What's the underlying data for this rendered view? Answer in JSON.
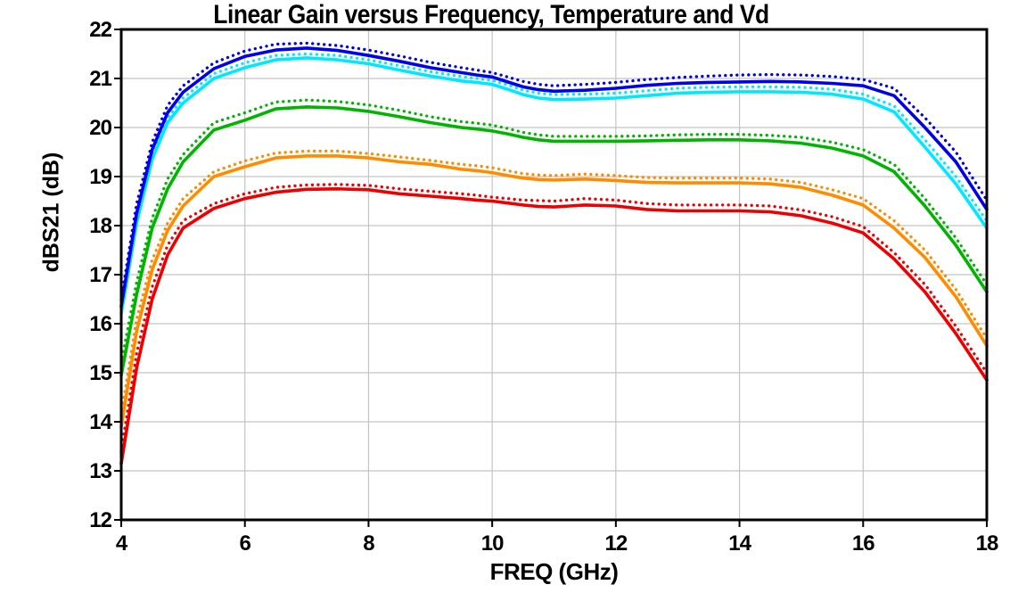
{
  "chart_data": {
    "type": "line",
    "title": "Linear Gain versus Frequency, Temperature and Vd",
    "xlabel": "FREQ (GHz)",
    "ylabel": "dBS21 (dB)",
    "xlim": [
      4,
      18
    ],
    "ylim": [
      12,
      22
    ],
    "x_ticks": [
      4,
      6,
      8,
      10,
      12,
      14,
      16,
      18
    ],
    "y_ticks": [
      12,
      13,
      14,
      15,
      16,
      17,
      18,
      19,
      20,
      21,
      22
    ],
    "grid": true,
    "legend_position": "none",
    "grid_color": "#c4c4c4",
    "border_color": "#000000",
    "x": [
      4,
      4.25,
      4.5,
      4.75,
      5,
      5.5,
      6,
      6.5,
      7,
      7.5,
      8,
      8.5,
      9,
      9.5,
      9.75,
      10,
      10.25,
      10.5,
      10.75,
      11,
      11.5,
      12,
      12.5,
      13,
      13.5,
      14,
      14.5,
      15,
      15.5,
      16,
      16.5,
      17,
      17.5,
      18
    ],
    "series": [
      {
        "name": "red-dotted",
        "color": "#ee0000",
        "style": "dotted",
        "values": [
          13.4,
          15.4,
          16.75,
          17.6,
          18.1,
          18.45,
          18.65,
          18.78,
          18.83,
          18.84,
          18.82,
          18.75,
          18.7,
          18.65,
          18.62,
          18.58,
          18.55,
          18.52,
          18.51,
          18.5,
          18.55,
          18.52,
          18.45,
          18.42,
          18.42,
          18.42,
          18.4,
          18.32,
          18.18,
          17.98,
          17.45,
          16.8,
          15.95,
          15.0
        ]
      },
      {
        "name": "red-solid",
        "color": "#ee0000",
        "style": "solid",
        "values": [
          13.15,
          15.1,
          16.5,
          17.4,
          17.95,
          18.35,
          18.55,
          18.68,
          18.74,
          18.75,
          18.73,
          18.65,
          18.6,
          18.55,
          18.52,
          18.5,
          18.46,
          18.42,
          18.39,
          18.38,
          18.42,
          18.4,
          18.33,
          18.3,
          18.3,
          18.3,
          18.28,
          18.2,
          18.05,
          17.85,
          17.32,
          16.65,
          15.8,
          14.85
        ]
      },
      {
        "name": "orange-dotted",
        "color": "#ff8c00",
        "style": "dotted",
        "values": [
          14.15,
          16.1,
          17.3,
          18.05,
          18.55,
          19.1,
          19.32,
          19.48,
          19.52,
          19.52,
          19.47,
          19.4,
          19.33,
          19.25,
          19.22,
          19.18,
          19.12,
          19.06,
          19.03,
          19.02,
          19.05,
          19.02,
          18.98,
          18.97,
          18.97,
          18.97,
          18.95,
          18.88,
          18.73,
          18.55,
          18.1,
          17.5,
          16.7,
          15.7
        ]
      },
      {
        "name": "orange-solid",
        "color": "#ff8c00",
        "style": "solid",
        "values": [
          13.9,
          15.85,
          17.1,
          17.9,
          18.4,
          19.0,
          19.2,
          19.38,
          19.42,
          19.42,
          19.38,
          19.3,
          19.25,
          19.15,
          19.12,
          19.08,
          19.02,
          18.97,
          18.94,
          18.93,
          18.95,
          18.92,
          18.88,
          18.87,
          18.87,
          18.87,
          18.85,
          18.78,
          18.62,
          18.42,
          17.95,
          17.35,
          16.55,
          15.55
        ]
      },
      {
        "name": "green-dotted",
        "color": "#00b400",
        "style": "dotted",
        "values": [
          15.2,
          16.85,
          18.15,
          18.95,
          19.45,
          20.1,
          20.3,
          20.52,
          20.56,
          20.53,
          20.46,
          20.35,
          20.22,
          20.12,
          20.09,
          20.05,
          19.98,
          19.9,
          19.85,
          19.82,
          19.82,
          19.82,
          19.83,
          19.85,
          19.86,
          19.86,
          19.84,
          19.8,
          19.7,
          19.55,
          19.25,
          18.55,
          17.75,
          16.8
        ]
      },
      {
        "name": "green-solid",
        "color": "#00b400",
        "style": "solid",
        "values": [
          14.95,
          16.6,
          17.95,
          18.75,
          19.3,
          19.95,
          20.15,
          20.38,
          20.42,
          20.4,
          20.33,
          20.22,
          20.1,
          20.0,
          19.97,
          19.93,
          19.87,
          19.8,
          19.75,
          19.72,
          19.72,
          19.72,
          19.73,
          19.74,
          19.75,
          19.75,
          19.73,
          19.68,
          19.58,
          19.42,
          19.1,
          18.4,
          17.6,
          16.65
        ]
      },
      {
        "name": "cyan-dotted",
        "color": "#00e8ff",
        "style": "dotted",
        "values": [
          16.35,
          18.2,
          19.5,
          20.2,
          20.6,
          21.1,
          21.32,
          21.47,
          21.5,
          21.47,
          21.38,
          21.26,
          21.14,
          21.04,
          21.0,
          20.96,
          20.87,
          20.76,
          20.7,
          20.67,
          20.68,
          20.7,
          20.75,
          20.8,
          20.82,
          20.83,
          20.83,
          20.82,
          20.78,
          20.68,
          20.44,
          19.75,
          19.0,
          18.1
        ]
      },
      {
        "name": "cyan-solid",
        "color": "#00e8ff",
        "style": "solid",
        "values": [
          16.2,
          18.05,
          19.35,
          20.1,
          20.5,
          21.0,
          21.22,
          21.38,
          21.42,
          21.38,
          21.3,
          21.17,
          21.05,
          20.95,
          20.92,
          20.88,
          20.78,
          20.67,
          20.6,
          20.57,
          20.58,
          20.6,
          20.65,
          20.7,
          20.72,
          20.73,
          20.73,
          20.72,
          20.68,
          20.58,
          20.32,
          19.6,
          18.85,
          17.95
        ]
      },
      {
        "name": "blue-dotted",
        "color": "#0000eb",
        "style": "dotted",
        "values": [
          16.5,
          18.45,
          19.7,
          20.45,
          20.85,
          21.32,
          21.56,
          21.7,
          21.72,
          21.67,
          21.58,
          21.46,
          21.33,
          21.22,
          21.17,
          21.12,
          21.03,
          20.94,
          20.88,
          20.85,
          20.88,
          20.92,
          20.98,
          21.02,
          21.05,
          21.07,
          21.08,
          21.07,
          21.04,
          20.98,
          20.8,
          20.2,
          19.5,
          18.52
        ]
      },
      {
        "name": "blue-solid",
        "color": "#0000eb",
        "style": "solid",
        "values": [
          16.35,
          18.25,
          19.55,
          20.3,
          20.72,
          21.2,
          21.45,
          21.58,
          21.62,
          21.57,
          21.47,
          21.35,
          21.22,
          21.12,
          21.07,
          21.03,
          20.93,
          20.83,
          20.77,
          20.74,
          20.76,
          20.8,
          20.86,
          20.9,
          20.92,
          20.93,
          20.94,
          20.93,
          20.9,
          20.85,
          20.65,
          20.0,
          19.3,
          18.33
        ]
      }
    ]
  }
}
